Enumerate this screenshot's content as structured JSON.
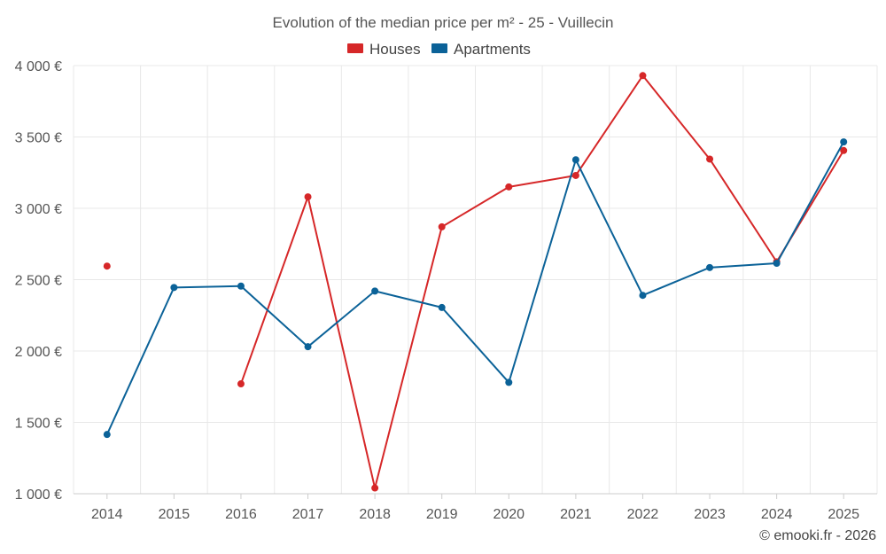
{
  "chart_data": {
    "type": "line",
    "title": "Evolution of the median price per m² - 25 - Vuillecin",
    "categories": [
      "2014",
      "2015",
      "2016",
      "2017",
      "2018",
      "2019",
      "2020",
      "2021",
      "2022",
      "2023",
      "2024",
      "2025"
    ],
    "ylim": [
      1000,
      4000
    ],
    "yticks": [
      1000,
      1500,
      2000,
      2500,
      3000,
      3500,
      4000
    ],
    "ytick_labels": [
      "1 000 €",
      "1 500 €",
      "2 000 €",
      "2 500 €",
      "3 000 €",
      "3 500 €",
      "4 000 €"
    ],
    "legend_position": "top-center",
    "series": [
      {
        "name": "Houses",
        "color": "#d62728",
        "values": [
          2595,
          null,
          1770,
          3080,
          1040,
          2870,
          3150,
          3230,
          3930,
          3345,
          2625,
          3405
        ]
      },
      {
        "name": "Apartments",
        "color": "#0b6298",
        "values": [
          1415,
          2445,
          2455,
          2030,
          2420,
          2305,
          1780,
          3340,
          2390,
          2585,
          2615,
          3465
        ]
      }
    ]
  },
  "credit": "© emooki.fr - 2026"
}
